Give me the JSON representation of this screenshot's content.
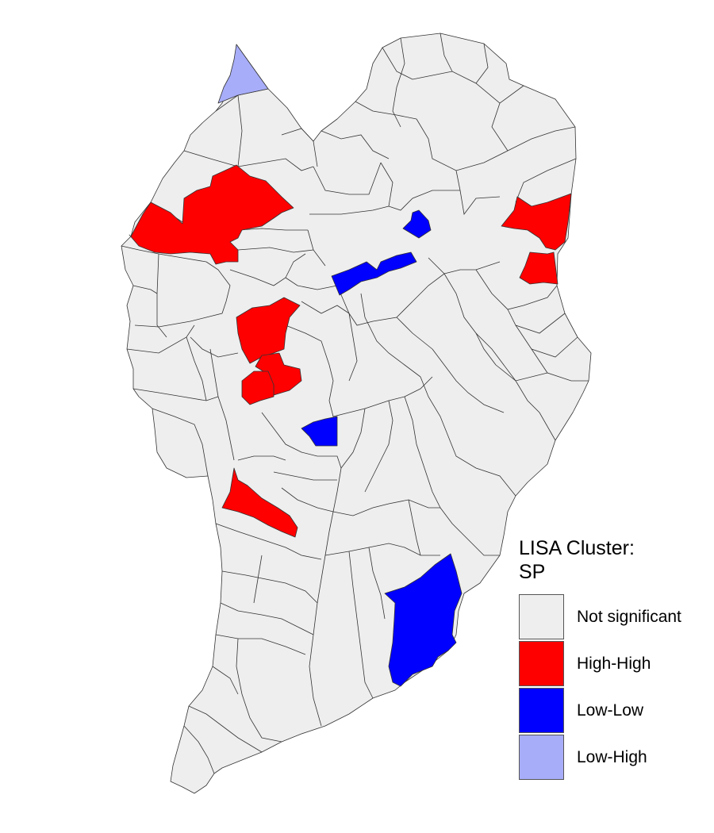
{
  "legend": {
    "title_line1": "LISA Cluster:",
    "title_line2": "SP",
    "items": [
      {
        "label": "Not significant",
        "color": "#EEEEEE"
      },
      {
        "label": "High-High",
        "color": "#FF0000"
      },
      {
        "label": "Low-Low",
        "color": "#0000FF"
      },
      {
        "label": "Low-High",
        "color": "#A7ADF8"
      }
    ]
  },
  "map": {
    "base_color": "#EEEEEE",
    "border_color": "#333333",
    "cluster_counts": {
      "High-High": 8,
      "Low-Low": 5,
      "Low-High": 1
    }
  }
}
